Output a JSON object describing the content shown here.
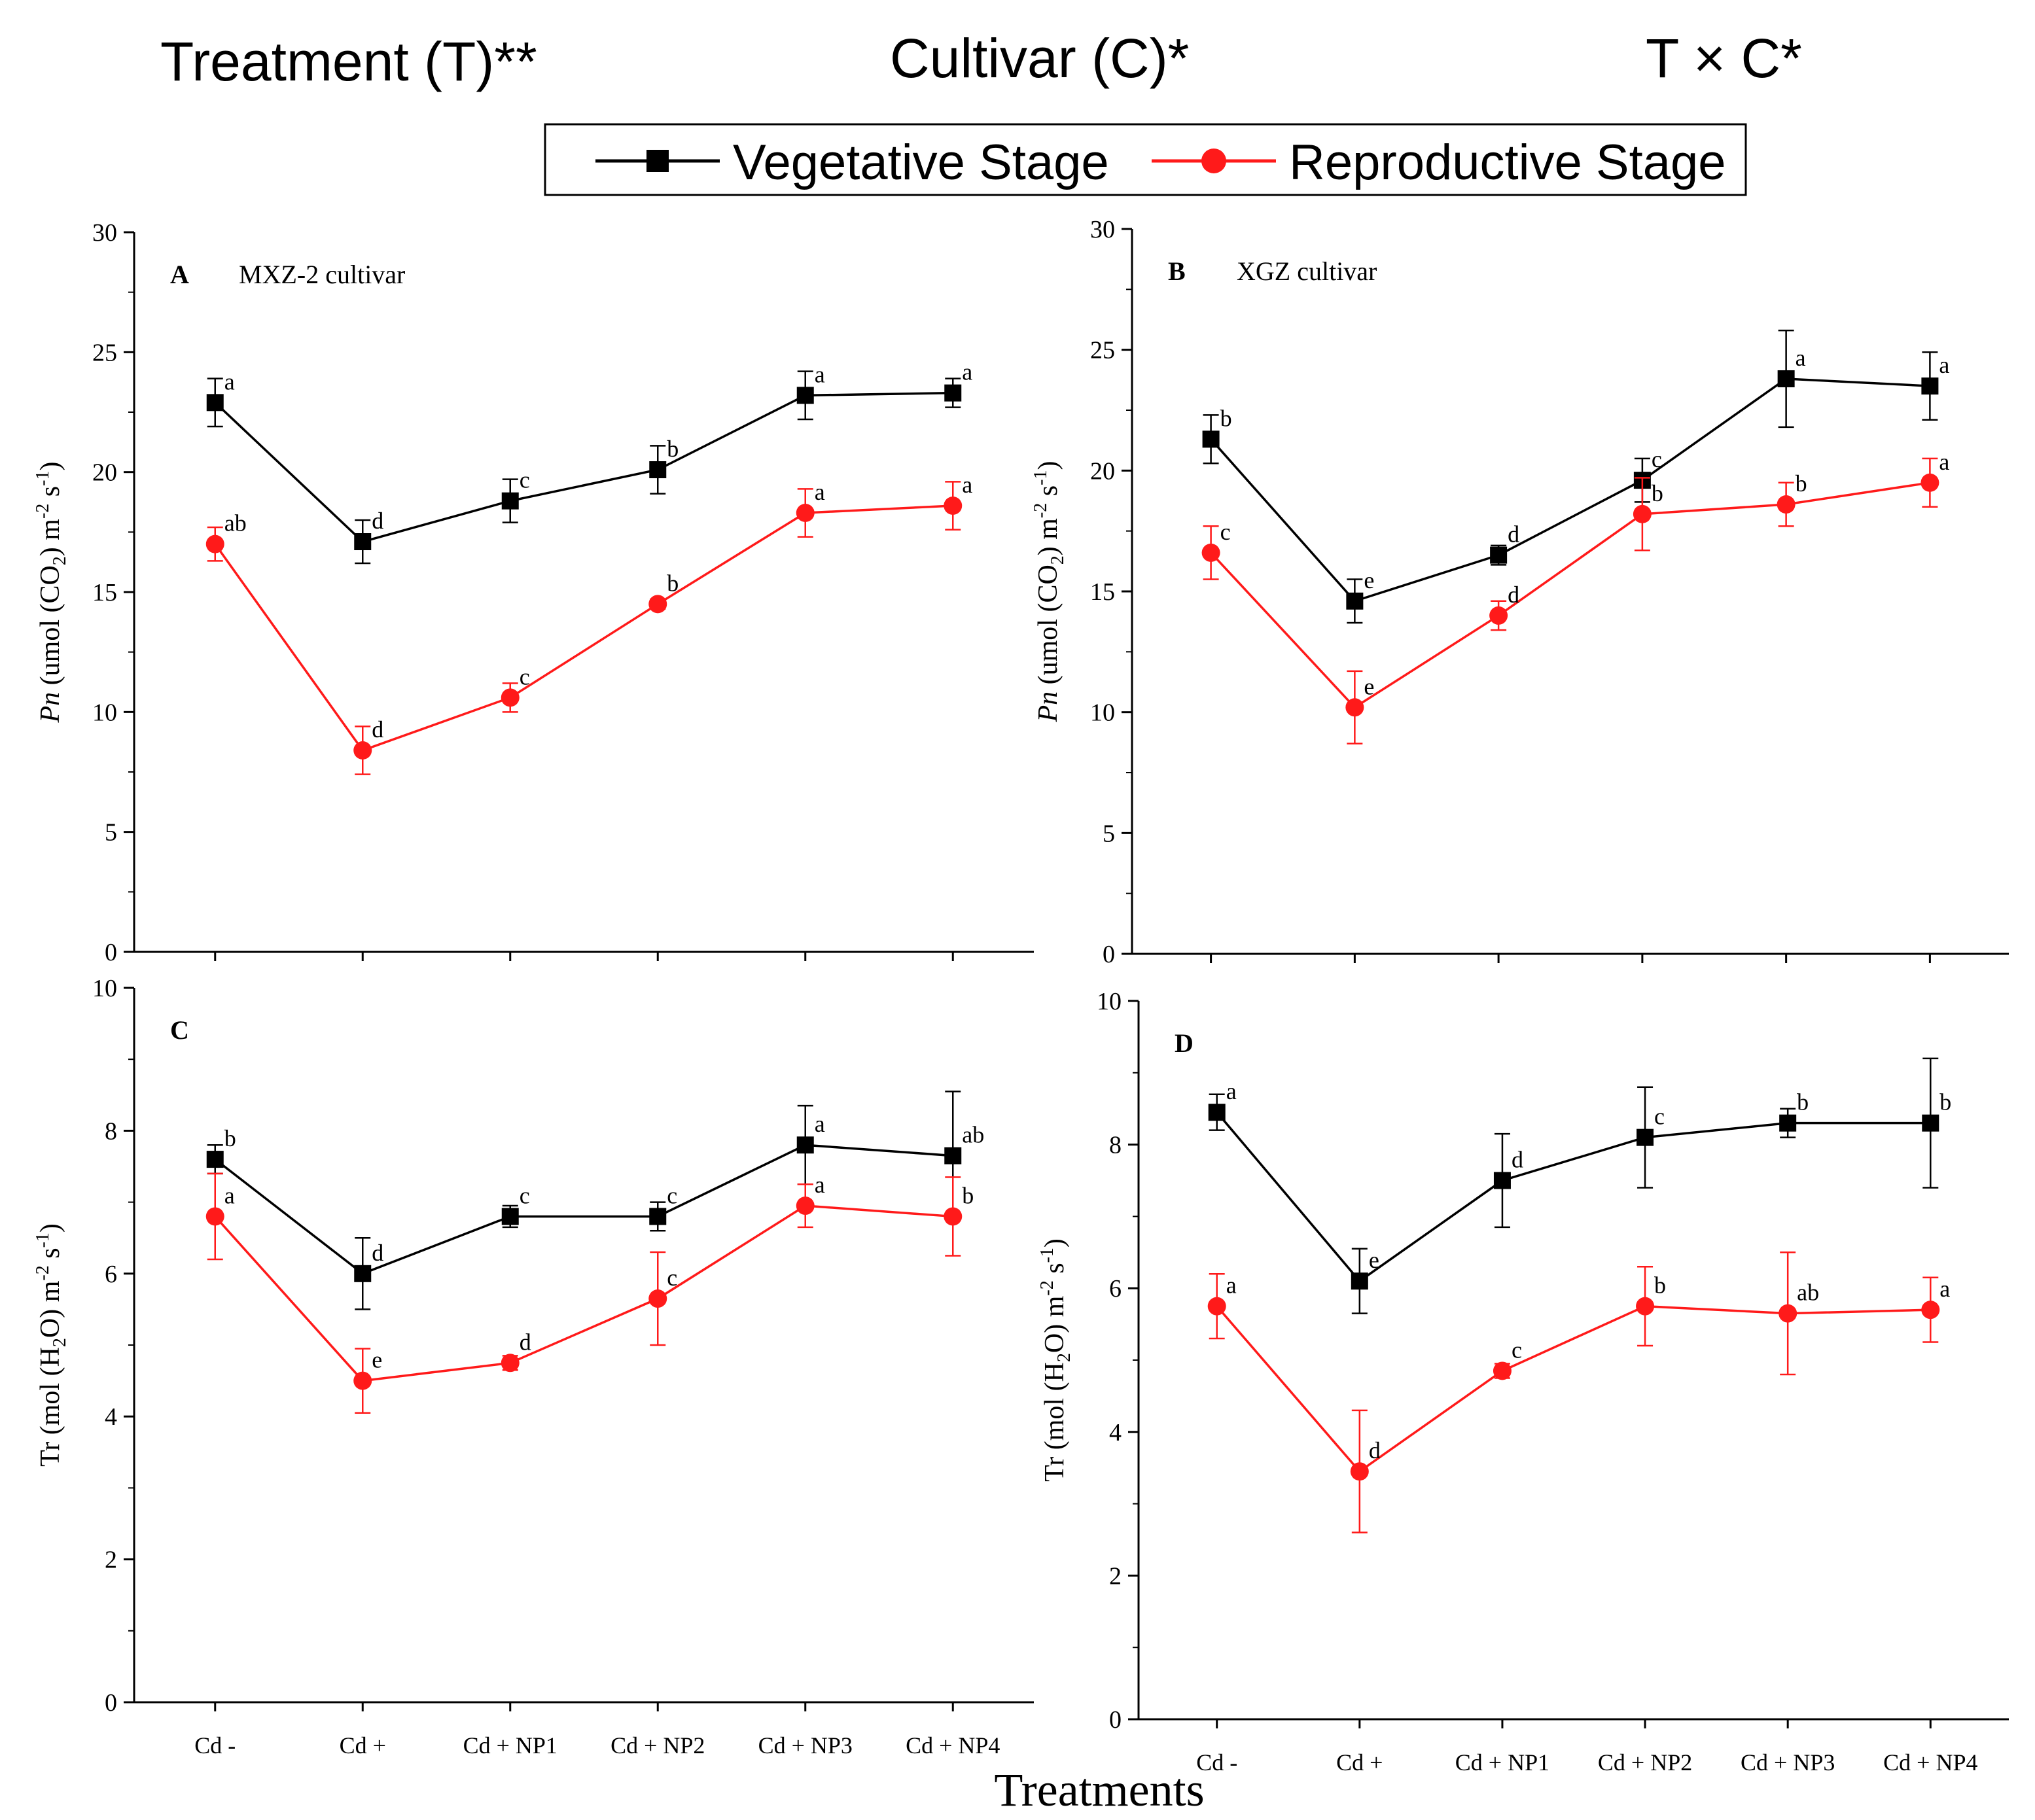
{
  "header": {
    "treatment_effect": "Treatment (T)**",
    "cultivar_effect": "Cultivar (C)*",
    "interaction_effect": "T × C*"
  },
  "legend": {
    "vegetative": "Vegetative Stage",
    "reproductive": "Reproductive Stage"
  },
  "colors": {
    "vegetative": "#000000",
    "reproductive": "#ff1a1a",
    "axis": "#000000"
  },
  "xlabel": "Treatments",
  "chart_data": [
    {
      "id": "A",
      "type": "line",
      "panel_label": "A",
      "title": "MXZ-2 cultivar",
      "ylabel": {
        "italic": "Pn",
        "rest": " (umol (CO",
        "sub1": "2",
        "mid": ") m",
        "sup1": "-2",
        "mid2": " s",
        "sup2": "-1",
        "end": ")"
      },
      "ylim": [
        0,
        30
      ],
      "yticks": [
        0,
        5,
        10,
        15,
        20,
        25,
        30
      ],
      "categories": [
        "Cd -",
        "Cd +",
        "Cd + NP1",
        "Cd + NP2",
        "Cd + NP3",
        "Cd + NP4"
      ],
      "series": [
        {
          "name": "Vegetative Stage",
          "values": [
            22.9,
            17.1,
            18.8,
            20.1,
            23.2,
            23.3
          ],
          "errors": [
            1.0,
            0.9,
            0.9,
            1.0,
            1.0,
            0.6
          ],
          "letters": [
            "a",
            "d",
            "c",
            "b",
            "a",
            "a"
          ]
        },
        {
          "name": "Reproductive Stage",
          "values": [
            17.0,
            8.4,
            10.6,
            14.5,
            18.3,
            18.6
          ],
          "errors": [
            0.7,
            1.0,
            0.6,
            0.2,
            1.0,
            1.0
          ],
          "letters": [
            "ab",
            "d",
            "c",
            "b",
            "a",
            "a"
          ]
        }
      ]
    },
    {
      "id": "B",
      "type": "line",
      "panel_label": "B",
      "title": "XGZ cultivar",
      "ylabel": {
        "italic": "Pn",
        "rest": " (umol (CO",
        "sub1": "2",
        "mid": ") m",
        "sup1": "-2",
        "mid2": " s",
        "sup2": "-1",
        "end": ")"
      },
      "ylim": [
        0,
        30
      ],
      "yticks": [
        0,
        5,
        10,
        15,
        20,
        25,
        30
      ],
      "categories": [
        "Cd -",
        "Cd +",
        "Cd + NP1",
        "Cd + NP2",
        "Cd + NP3",
        "Cd + NP4"
      ],
      "series": [
        {
          "name": "Vegetative Stage",
          "values": [
            21.3,
            14.6,
            16.5,
            19.6,
            23.8,
            23.5
          ],
          "errors": [
            1.0,
            0.9,
            0.4,
            0.9,
            2.0,
            1.4
          ],
          "letters": [
            "b",
            "e",
            "d",
            "c",
            "a",
            "a"
          ]
        },
        {
          "name": "Reproductive Stage",
          "values": [
            16.6,
            10.2,
            14.0,
            18.2,
            18.6,
            19.5
          ],
          "errors": [
            1.1,
            1.5,
            0.6,
            1.5,
            0.9,
            1.0
          ],
          "letters": [
            "c",
            "e",
            "d",
            "b",
            "b",
            "a"
          ]
        }
      ]
    },
    {
      "id": "C",
      "type": "line",
      "panel_label": "C",
      "title": "",
      "ylabel": {
        "italic": "",
        "rest": "Tr (mol (H",
        "sub1": "2",
        "mid": "O) m",
        "sup1": "-2",
        "mid2": " s",
        "sup2": "-1",
        "end": ")"
      },
      "ylim": [
        0,
        10
      ],
      "yticks": [
        0,
        2,
        4,
        6,
        8,
        10
      ],
      "categories": [
        "Cd -",
        "Cd +",
        "Cd + NP1",
        "Cd + NP2",
        "Cd + NP3",
        "Cd + NP4"
      ],
      "series": [
        {
          "name": "Vegetative Stage",
          "values": [
            7.6,
            6.0,
            6.8,
            6.8,
            7.8,
            7.65
          ],
          "errors": [
            0.2,
            0.5,
            0.15,
            0.2,
            0.55,
            0.9
          ],
          "letters": [
            "b",
            "d",
            "c",
            "c",
            "a",
            "ab"
          ]
        },
        {
          "name": "Reproductive Stage",
          "values": [
            6.8,
            4.5,
            4.75,
            5.65,
            6.95,
            6.8
          ],
          "errors": [
            0.6,
            0.45,
            0.1,
            0.65,
            0.3,
            0.55
          ],
          "letters": [
            "a",
            "e",
            "d",
            "c",
            "a",
            "b"
          ]
        }
      ]
    },
    {
      "id": "D",
      "type": "line",
      "panel_label": "D",
      "title": "",
      "ylabel": {
        "italic": "",
        "rest": "Tr (mol (H",
        "sub1": "2",
        "mid": "O) m",
        "sup1": "-2",
        "mid2": " s",
        "sup2": "-1",
        "end": ")"
      },
      "ylim": [
        0,
        10
      ],
      "yticks": [
        0,
        2,
        4,
        6,
        8,
        10
      ],
      "categories": [
        "Cd -",
        "Cd +",
        "Cd + NP1",
        "Cd + NP2",
        "Cd + NP3",
        "Cd + NP4"
      ],
      "series": [
        {
          "name": "Vegetative Stage",
          "values": [
            8.45,
            6.1,
            7.5,
            8.1,
            8.3,
            8.3
          ],
          "errors": [
            0.25,
            0.45,
            0.65,
            0.7,
            0.2,
            0.9
          ],
          "letters": [
            "a",
            "e",
            "d",
            "c",
            "b",
            "b"
          ]
        },
        {
          "name": "Reproductive Stage",
          "values": [
            5.75,
            3.45,
            4.85,
            5.75,
            5.65,
            5.7
          ],
          "errors": [
            0.45,
            0.85,
            0.1,
            0.55,
            0.85,
            0.45
          ],
          "letters": [
            "a",
            "d",
            "c",
            "b",
            "ab",
            "a"
          ]
        }
      ]
    }
  ]
}
